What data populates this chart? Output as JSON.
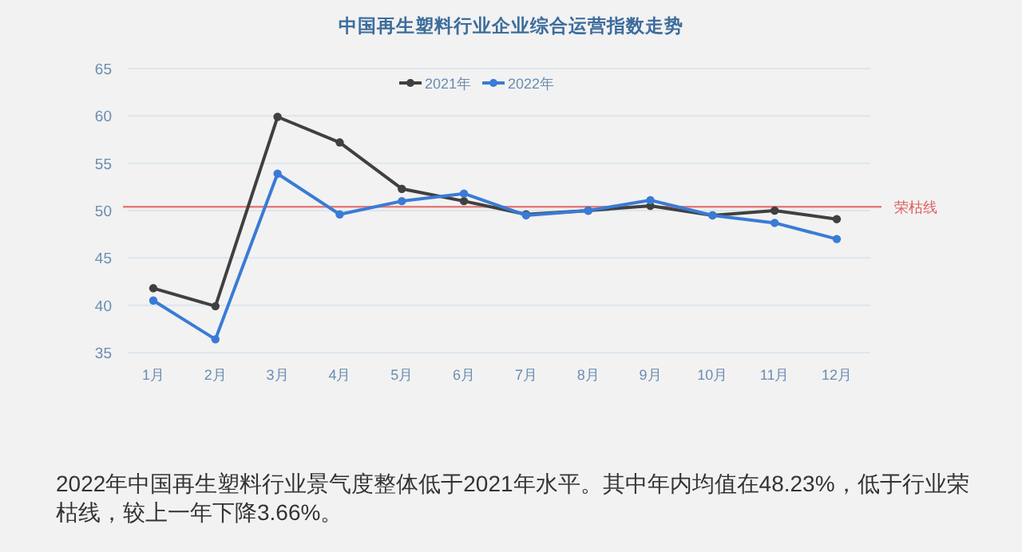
{
  "chart_data": {
    "type": "line",
    "title": "中国再生塑料行业企业综合运营指数走势",
    "categories": [
      "1月",
      "2月",
      "3月",
      "4月",
      "5月",
      "6月",
      "7月",
      "8月",
      "9月",
      "10月",
      "11月",
      "12月"
    ],
    "series": [
      {
        "name": "2021年",
        "color": "#404040",
        "values": [
          41.8,
          39.9,
          59.9,
          57.2,
          52.3,
          51.0,
          49.6,
          50.0,
          50.5,
          49.5,
          50.0,
          49.1
        ]
      },
      {
        "name": "2022年",
        "color": "#3a7bd5",
        "values": [
          40.5,
          36.4,
          53.9,
          49.6,
          51.0,
          51.8,
          49.5,
          50.0,
          51.1,
          49.5,
          48.7,
          47.0
        ]
      }
    ],
    "ylim": [
      35,
      65
    ],
    "yticks": [
      35,
      40,
      45,
      50,
      55,
      60,
      65
    ],
    "grid": "y",
    "legend": "top right",
    "marker": "circle",
    "ref_lines": [
      {
        "axis": "y",
        "value": 50.4,
        "label": "荣枯线",
        "color": "#e06060"
      }
    ],
    "annotations": [
      "2022年中国再生塑料行业景气度整体低于2021年水平。其中年内均值在48.23%，低于行业荣枯线，较上一年下降3.66%。"
    ]
  }
}
